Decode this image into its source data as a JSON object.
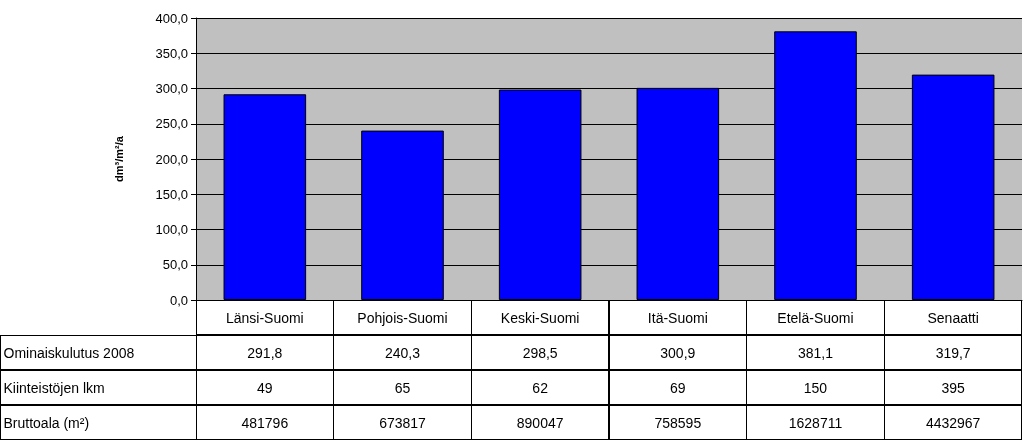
{
  "chart_data": {
    "type": "bar",
    "ylabel": "dm³/m²/a",
    "categories": [
      "Länsi-Suomi",
      "Pohjois-Suomi",
      "Keski-Suomi",
      "Itä-Suomi",
      "Etelä-Suomi",
      "Senaatti"
    ],
    "series": [
      {
        "name": "Ominaiskulutus 2008",
        "color": "#0000ff",
        "values": [
          291.8,
          240.3,
          298.5,
          300.9,
          381.1,
          319.7
        ],
        "value_labels": [
          "291,8",
          "240,3",
          "298,5",
          "300,9",
          "381,1",
          "319,7"
        ]
      }
    ],
    "ylim": [
      0,
      400
    ],
    "yticks": [
      {
        "value": 0,
        "label": "0,0"
      },
      {
        "value": 50,
        "label": "50,0"
      },
      {
        "value": 100,
        "label": "100,0"
      },
      {
        "value": 150,
        "label": "150,0"
      },
      {
        "value": 200,
        "label": "200,0"
      },
      {
        "value": 250,
        "label": "250,0"
      },
      {
        "value": 300,
        "label": "300,0"
      },
      {
        "value": 350,
        "label": "350,0"
      },
      {
        "value": 400,
        "label": "400,0"
      }
    ],
    "grid": "y",
    "annotations": [
      "Kiinteistöjen lkm",
      "49",
      "65",
      "62",
      "69",
      "150",
      "395",
      "Bruttoala (m²)",
      "481796",
      "673817",
      "890047",
      "758595",
      "1628711",
      "4432967"
    ]
  }
}
